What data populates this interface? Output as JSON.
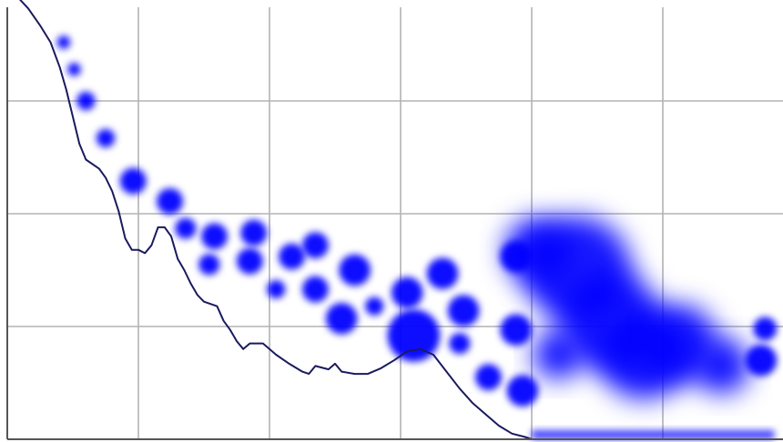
{
  "chart_data": {
    "type": "scatter",
    "title": "",
    "xlabel": "",
    "ylabel": "",
    "xlim": [
      0,
      6
    ],
    "ylim": [
      0,
      4
    ],
    "grid": true,
    "legend": "none",
    "colors": {
      "points": "#0000ff",
      "line": "#1a1a5e",
      "grid": "#b3b3b3",
      "axis": "#555555",
      "background": "#ffffff"
    },
    "series": [
      {
        "type": "scatter",
        "points": [
          {
            "x": 0.43,
            "y": 3.52,
            "r": 0.05
          },
          {
            "x": 0.51,
            "y": 3.28,
            "r": 0.05
          },
          {
            "x": 0.6,
            "y": 3.0,
            "r": 0.07
          },
          {
            "x": 0.75,
            "y": 2.67,
            "r": 0.07
          },
          {
            "x": 0.96,
            "y": 2.29,
            "r": 0.1
          },
          {
            "x": 1.24,
            "y": 2.11,
            "r": 0.1
          },
          {
            "x": 1.36,
            "y": 1.87,
            "r": 0.08
          },
          {
            "x": 1.58,
            "y": 1.8,
            "r": 0.1
          },
          {
            "x": 1.88,
            "y": 1.83,
            "r": 0.1
          },
          {
            "x": 1.54,
            "y": 1.55,
            "r": 0.08
          },
          {
            "x": 1.85,
            "y": 1.58,
            "r": 0.1
          },
          {
            "x": 2.17,
            "y": 1.62,
            "r": 0.1
          },
          {
            "x": 2.35,
            "y": 1.72,
            "r": 0.1
          },
          {
            "x": 2.05,
            "y": 1.33,
            "r": 0.07
          },
          {
            "x": 2.35,
            "y": 1.33,
            "r": 0.1
          },
          {
            "x": 2.65,
            "y": 1.5,
            "r": 0.12
          },
          {
            "x": 2.55,
            "y": 1.07,
            "r": 0.12
          },
          {
            "x": 2.8,
            "y": 1.18,
            "r": 0.07
          },
          {
            "x": 3.05,
            "y": 1.3,
            "r": 0.12
          },
          {
            "x": 3.1,
            "y": 0.92,
            "r": 0.2
          },
          {
            "x": 3.32,
            "y": 1.47,
            "r": 0.12
          },
          {
            "x": 3.48,
            "y": 1.14,
            "r": 0.12
          },
          {
            "x": 3.45,
            "y": 0.85,
            "r": 0.08
          },
          {
            "x": 3.67,
            "y": 0.55,
            "r": 0.1
          },
          {
            "x": 3.93,
            "y": 0.43,
            "r": 0.12
          },
          {
            "x": 3.88,
            "y": 1.62,
            "r": 0.12
          },
          {
            "x": 3.88,
            "y": 0.97,
            "r": 0.12
          },
          {
            "x": 4.05,
            "y": 1.67,
            "r": 0.3
          },
          {
            "x": 4.35,
            "y": 1.5,
            "r": 0.48
          },
          {
            "x": 4.6,
            "y": 1.05,
            "r": 0.45
          },
          {
            "x": 4.85,
            "y": 0.75,
            "r": 0.4
          },
          {
            "x": 4.2,
            "y": 0.75,
            "r": 0.22
          },
          {
            "x": 5.12,
            "y": 0.85,
            "r": 0.35
          },
          {
            "x": 5.45,
            "y": 0.65,
            "r": 0.25
          },
          {
            "x": 5.75,
            "y": 0.7,
            "r": 0.12
          },
          {
            "x": 5.78,
            "y": 0.98,
            "r": 0.09
          }
        ]
      },
      {
        "type": "line",
        "points": [
          [
            0.0,
            4.0
          ],
          [
            0.08,
            3.92
          ],
          [
            0.16,
            3.82
          ],
          [
            0.25,
            3.67
          ],
          [
            0.33,
            3.52
          ],
          [
            0.4,
            3.3
          ],
          [
            0.45,
            3.1
          ],
          [
            0.5,
            2.86
          ],
          [
            0.55,
            2.62
          ],
          [
            0.6,
            2.48
          ],
          [
            0.7,
            2.4
          ],
          [
            0.75,
            2.32
          ],
          [
            0.8,
            2.2
          ],
          [
            0.85,
            2.02
          ],
          [
            0.9,
            1.78
          ],
          [
            0.95,
            1.68
          ],
          [
            1.0,
            1.68
          ],
          [
            1.05,
            1.65
          ],
          [
            1.1,
            1.72
          ],
          [
            1.15,
            1.88
          ],
          [
            1.2,
            1.88
          ],
          [
            1.25,
            1.8
          ],
          [
            1.3,
            1.6
          ],
          [
            1.35,
            1.5
          ],
          [
            1.4,
            1.38
          ],
          [
            1.45,
            1.28
          ],
          [
            1.5,
            1.22
          ],
          [
            1.55,
            1.2
          ],
          [
            1.6,
            1.18
          ],
          [
            1.65,
            1.05
          ],
          [
            1.7,
            0.97
          ],
          [
            1.75,
            0.87
          ],
          [
            1.8,
            0.8
          ],
          [
            1.85,
            0.85
          ],
          [
            1.95,
            0.85
          ],
          [
            2.05,
            0.75
          ],
          [
            2.15,
            0.67
          ],
          [
            2.25,
            0.6
          ],
          [
            2.3,
            0.58
          ],
          [
            2.35,
            0.65
          ],
          [
            2.45,
            0.62
          ],
          [
            2.5,
            0.67
          ],
          [
            2.55,
            0.6
          ],
          [
            2.65,
            0.58
          ],
          [
            2.75,
            0.58
          ],
          [
            2.85,
            0.63
          ],
          [
            2.95,
            0.7
          ],
          [
            3.05,
            0.78
          ],
          [
            3.15,
            0.8
          ],
          [
            3.25,
            0.75
          ],
          [
            3.35,
            0.6
          ],
          [
            3.45,
            0.45
          ],
          [
            3.55,
            0.32
          ],
          [
            3.65,
            0.22
          ],
          [
            3.75,
            0.12
          ],
          [
            3.85,
            0.05
          ],
          [
            3.95,
            0.02
          ],
          [
            4.0,
            0.0
          ],
          [
            6.0,
            0.0
          ]
        ]
      }
    ]
  }
}
